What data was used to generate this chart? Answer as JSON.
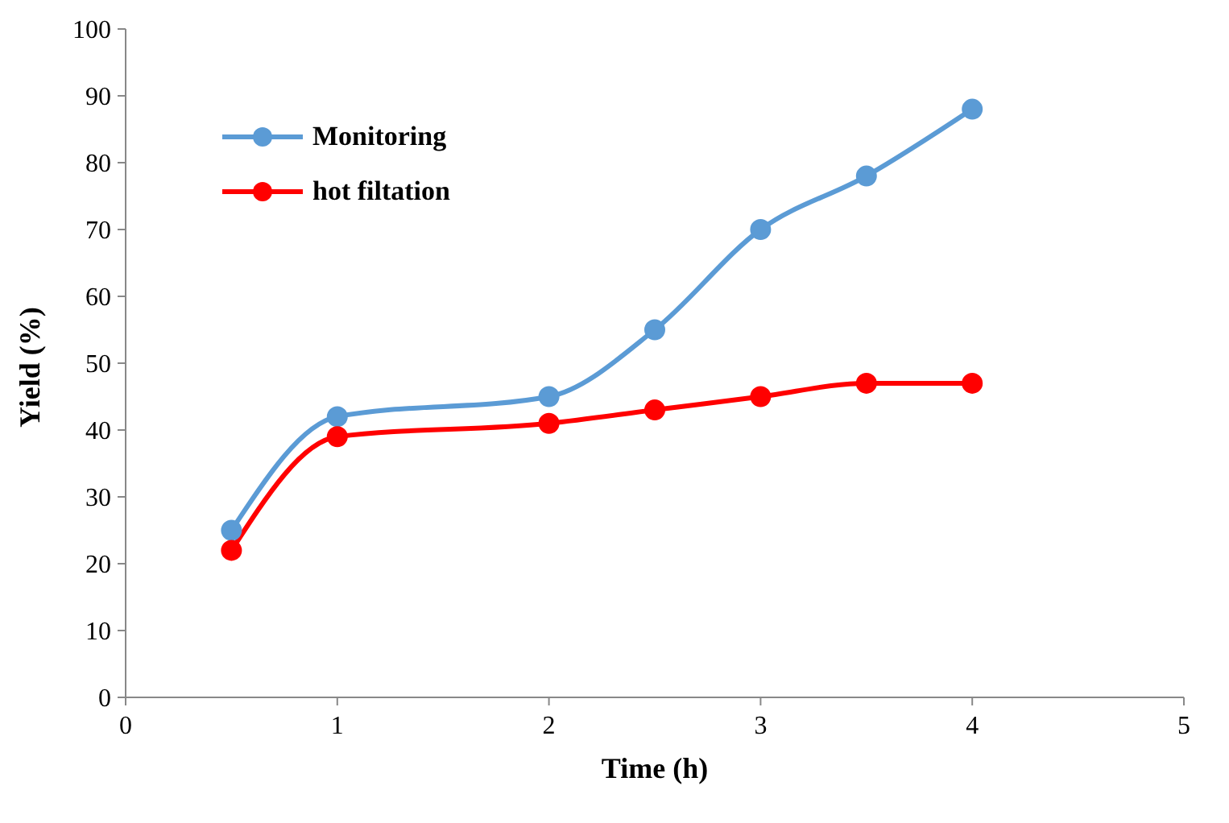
{
  "chart_data": {
    "type": "line",
    "xlabel": "Time (h)",
    "ylabel": "Yield (%)",
    "x": [
      0.5,
      1,
      2,
      2.5,
      3,
      3.5,
      4
    ],
    "series": [
      {
        "name": "Monitoring",
        "color": "#5b9bd5",
        "values": [
          25,
          42,
          45,
          55,
          70,
          78,
          88
        ]
      },
      {
        "name": "hot filtation",
        "color": "#ff0000",
        "values": [
          22,
          39,
          41,
          43,
          45,
          47,
          47
        ]
      }
    ],
    "xlim": [
      0,
      5
    ],
    "xticks": [
      0,
      1,
      2,
      3,
      4,
      5
    ],
    "ylim": [
      0,
      100
    ],
    "yticks": [
      0,
      10,
      20,
      30,
      40,
      50,
      60,
      70,
      80,
      90,
      100
    ],
    "grid": false,
    "legend": "top left",
    "marker": "circle",
    "line_style": "solid"
  }
}
